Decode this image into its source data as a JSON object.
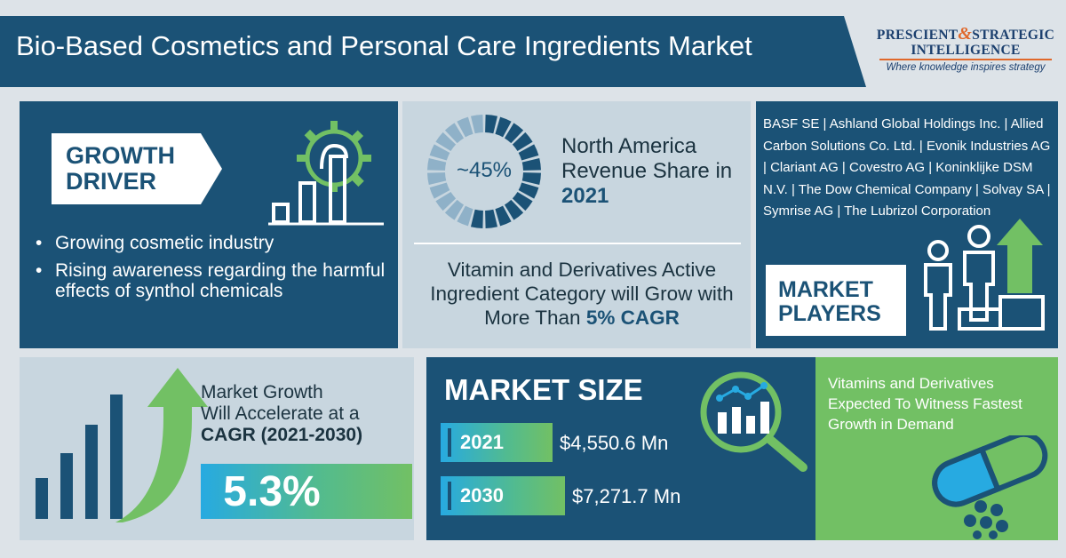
{
  "header": {
    "title": "Bio-Based Cosmetics and Personal Care Ingredients Market",
    "logo_line1_a": "PRESCIENT",
    "logo_amp": "&",
    "logo_line1_b": "STRATEGIC",
    "logo_line2": "INTELLIGENCE",
    "logo_tagline": "Where knowledge inspires strategy"
  },
  "growth_driver": {
    "label": "GROWTH DRIVER",
    "bullets": [
      "Growing cosmetic industry",
      "Rising awareness regarding the harmful effects of synthol chemicals"
    ],
    "icon": "gear-bar-chart-icon"
  },
  "regional_share": {
    "value_label": "~45%",
    "share_fraction": 0.45,
    "text_prefix": "North America Revenue Share in",
    "year": "2021"
  },
  "category": {
    "text": "Vitamin and Derivatives Active Ingredient Category will Grow with More Than",
    "highlight": "5% CAGR"
  },
  "market_players": {
    "label": "MARKET PLAYERS",
    "list": "BASF SE | Ashland Global Holdings Inc. | Allied Carbon Solutions Co. Ltd. | Evonik Industries AG | Clariant AG | Covestro AG | Koninklijke DSM N.V. | The Dow Chemical Company | Solvay SA | Symrise AG | The Lubrizol Corporation",
    "icon": "podium-people-icon"
  },
  "market_growth": {
    "line1": "Market Growth",
    "line2": "Will Accelerate at a",
    "line3": "CAGR (2021-2030)",
    "value": "5.3%",
    "icon": "rising-bars-arrow-icon"
  },
  "market_size": {
    "title": "MARKET SIZE",
    "rows": [
      {
        "year": "2021",
        "value": "$4,550.6 Mn"
      },
      {
        "year": "2030",
        "value": "$7,271.7 Mn"
      }
    ],
    "icon": "magnifier-chart-icon"
  },
  "vitamins": {
    "text": "Vitamins and Derivatives Expected To Witness Fastest Growth in Demand",
    "icon": "capsule-pills-icon"
  },
  "colors": {
    "navy": "#1b5276",
    "light": "#c8d6df",
    "green": "#72c064",
    "blue": "#27aae1",
    "orange": "#e0682b"
  }
}
